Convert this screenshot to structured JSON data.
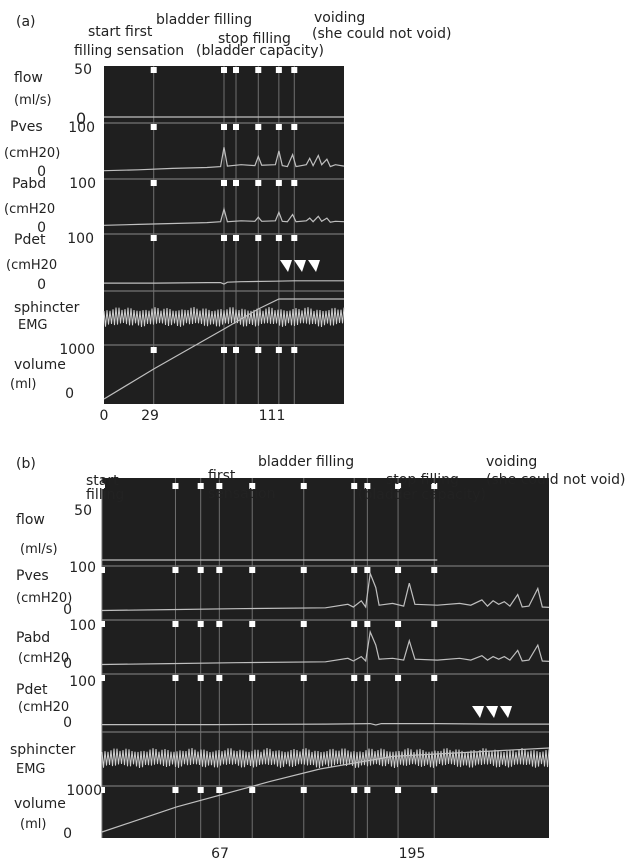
{
  "chart_data": [
    {
      "type": "line",
      "panel_label": "(a)",
      "annotations": [
        {
          "text": "start first",
          "time": 29
        },
        {
          "text": "filling sensation",
          "time": 29
        },
        {
          "text": "bladder filling",
          "time": 70
        },
        {
          "text": "stop filling",
          "time": 90
        },
        {
          "text": "(bladder capacity)",
          "time": 90
        },
        {
          "text": "voiding",
          "time": 111
        },
        {
          "text": "(she could not void)",
          "time": 111
        }
      ],
      "xticks": [
        {
          "label": "0",
          "value": 0
        },
        {
          "label": "29",
          "value": 29
        },
        {
          "label": "111",
          "value": 111
        }
      ],
      "xlim": [
        0,
        140
      ],
      "event_lines": [
        29,
        70,
        77,
        90,
        102,
        111
      ],
      "tracks": [
        {
          "label1": "flow",
          "label2": "(ml/s)",
          "top_tick": "50",
          "bottom_tick": "0",
          "values": [
            [
              0,
              0
            ],
            [
              140,
              0
            ]
          ]
        },
        {
          "label1": "Pves",
          "label2": "(cmH20)",
          "top_tick": "100",
          "bottom_tick": "0",
          "values": [
            [
              0,
              5
            ],
            [
              20,
              7
            ],
            [
              40,
              10
            ],
            [
              60,
              12
            ],
            [
              68,
              14
            ],
            [
              70,
              56
            ],
            [
              72,
              15
            ],
            [
              80,
              18
            ],
            [
              88,
              16
            ],
            [
              90,
              36
            ],
            [
              92,
              17
            ],
            [
              100,
              18
            ],
            [
              102,
              48
            ],
            [
              104,
              16
            ],
            [
              107,
              14
            ],
            [
              110,
              40
            ],
            [
              112,
              14
            ],
            [
              118,
              18
            ],
            [
              120,
              32
            ],
            [
              122,
              16
            ],
            [
              125,
              38
            ],
            [
              127,
              18
            ],
            [
              130,
              30
            ],
            [
              132,
              14
            ],
            [
              135,
              18
            ],
            [
              140,
              15
            ]
          ]
        },
        {
          "label1": "Pabd",
          "label2": "(cmH20",
          "top_tick": "100",
          "bottom_tick": "0",
          "values": [
            [
              0,
              6
            ],
            [
              20,
              8
            ],
            [
              40,
              10
            ],
            [
              60,
              12
            ],
            [
              68,
              14
            ],
            [
              70,
              42
            ],
            [
              72,
              14
            ],
            [
              80,
              16
            ],
            [
              88,
              15
            ],
            [
              90,
              24
            ],
            [
              92,
              15
            ],
            [
              100,
              16
            ],
            [
              102,
              35
            ],
            [
              104,
              15
            ],
            [
              107,
              14
            ],
            [
              110,
              30
            ],
            [
              112,
              14
            ],
            [
              118,
              16
            ],
            [
              120,
              22
            ],
            [
              122,
              14
            ],
            [
              125,
              26
            ],
            [
              127,
              15
            ],
            [
              130,
              22
            ],
            [
              132,
              13
            ],
            [
              135,
              15
            ],
            [
              140,
              14
            ]
          ]
        },
        {
          "label1": "Pdet",
          "label2": "(cmH20",
          "top_tick": "100",
          "bottom_tick": "0",
          "values": [
            [
              0,
              4
            ],
            [
              30,
              4
            ],
            [
              60,
              5
            ],
            [
              68,
              5
            ],
            [
              70,
              2
            ],
            [
              72,
              6
            ],
            [
              80,
              7
            ],
            [
              100,
              8
            ],
            [
              111,
              9
            ],
            [
              140,
              9
            ]
          ]
        },
        {
          "label1": "sphincter",
          "label2": "EMG",
          "top_tick": "",
          "bottom_tick": "",
          "values": [
            [
              0,
              0
            ],
            [
              140,
              0
            ]
          ]
        },
        {
          "label1": "volume",
          "label2": "(ml)",
          "top_tick": "1000",
          "bottom_tick": "0",
          "values": [
            [
              0,
              0
            ],
            [
              29,
              60
            ],
            [
              70,
              140
            ],
            [
              90,
              180
            ],
            [
              102,
              200
            ],
            [
              111,
              200
            ],
            [
              140,
              200
            ]
          ]
        }
      ],
      "overlay_label": "0"
    },
    {
      "type": "line",
      "panel_label": "(b)",
      "annotations": [
        {
          "text": "start",
          "time": 0
        },
        {
          "text": "filling",
          "time": 0
        },
        {
          "text": "first",
          "time": 67
        },
        {
          "text": "sensation",
          "time": 67
        },
        {
          "text": "bladder filling",
          "time": 120
        },
        {
          "text": "stop filling",
          "time": 195
        },
        {
          "text": "(bladder capacity)",
          "time": 195
        },
        {
          "text": "voiding",
          "time": 226
        },
        {
          "text": "(she could not void)",
          "time": 226
        }
      ],
      "xticks": [
        {
          "label": "67",
          "value": 67
        },
        {
          "label": "195",
          "value": 195
        }
      ],
      "xlim": [
        0,
        300
      ],
      "event_lines": [
        0,
        67,
        90,
        107,
        137,
        184,
        230,
        242,
        270,
        303
      ],
      "event_badges": [
        "",
        "68",
        "82",
        "92",
        "",
        "107",
        "174",
        "174",
        "184",
        "194"
      ],
      "tracks": [
        {
          "label1": "flow",
          "label2": "(ml/s)",
          "top_tick": "50",
          "bottom_tick": "0",
          "values": [
            [
              0,
              0
            ],
            [
              300,
              0
            ]
          ]
        },
        {
          "label1": "Pves",
          "label2": "(cmH20)",
          "top_tick": "100",
          "bottom_tick": "0",
          "values": [
            [
              0,
              8
            ],
            [
              60,
              10
            ],
            [
              120,
              12
            ],
            [
              200,
              14
            ],
            [
              220,
              22
            ],
            [
              225,
              16
            ],
            [
              232,
              30
            ],
            [
              236,
              16
            ],
            [
              240,
              92
            ],
            [
              245,
              60
            ],
            [
              248,
              20
            ],
            [
              260,
              24
            ],
            [
              270,
              18
            ],
            [
              275,
              70
            ],
            [
              280,
              22
            ],
            [
              300,
              20
            ],
            [
              320,
              24
            ],
            [
              330,
              20
            ],
            [
              340,
              32
            ],
            [
              345,
              18
            ],
            [
              350,
              30
            ],
            [
              355,
              22
            ],
            [
              360,
              28
            ],
            [
              365,
              18
            ],
            [
              372,
              44
            ],
            [
              376,
              16
            ],
            [
              382,
              18
            ],
            [
              390,
              58
            ],
            [
              394,
              16
            ],
            [
              400,
              15
            ]
          ]
        },
        {
          "label1": "Pabd",
          "label2": "(cmH20",
          "top_tick": "100",
          "bottom_tick": "0",
          "values": [
            [
              0,
              8
            ],
            [
              60,
              10
            ],
            [
              120,
              12
            ],
            [
              200,
              14
            ],
            [
              220,
              22
            ],
            [
              225,
              16
            ],
            [
              232,
              26
            ],
            [
              236,
              16
            ],
            [
              240,
              82
            ],
            [
              245,
              52
            ],
            [
              248,
              20
            ],
            [
              260,
              22
            ],
            [
              270,
              18
            ],
            [
              275,
              62
            ],
            [
              280,
              20
            ],
            [
              300,
              18
            ],
            [
              320,
              22
            ],
            [
              330,
              18
            ],
            [
              340,
              28
            ],
            [
              345,
              18
            ],
            [
              350,
              26
            ],
            [
              355,
              20
            ],
            [
              360,
              26
            ],
            [
              365,
              18
            ],
            [
              372,
              40
            ],
            [
              376,
              16
            ],
            [
              382,
              18
            ],
            [
              390,
              52
            ],
            [
              394,
              16
            ],
            [
              400,
              15
            ]
          ]
        },
        {
          "label1": "Pdet",
          "label2": "(cmH20",
          "top_tick": "100",
          "bottom_tick": "0",
          "values": [
            [
              0,
              3
            ],
            [
              100,
              3
            ],
            [
              200,
              4
            ],
            [
              240,
              5
            ],
            [
              245,
              2
            ],
            [
              250,
              5
            ],
            [
              300,
              5
            ],
            [
              350,
              4
            ],
            [
              400,
              4
            ]
          ]
        },
        {
          "label1": "sphincter",
          "label2": "EMG",
          "top_tick": "",
          "bottom_tick": "",
          "values": [
            [
              0,
              0
            ],
            [
              400,
              0
            ]
          ]
        },
        {
          "label1": "volume",
          "label2": "(ml)",
          "top_tick": "1000",
          "bottom_tick": "0",
          "values": [
            [
              0,
              0
            ],
            [
              67,
              60
            ],
            [
              150,
              120
            ],
            [
              195,
              150
            ],
            [
              260,
              180
            ],
            [
              400,
              200
            ]
          ]
        }
      ],
      "overlay_label": ""
    }
  ]
}
